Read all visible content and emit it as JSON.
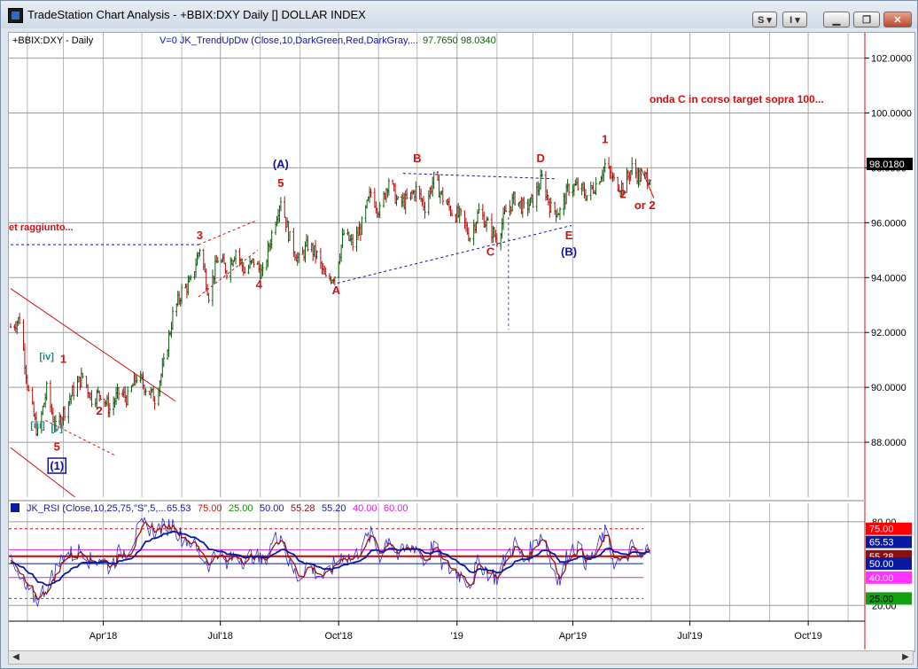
{
  "window": {
    "title": "TradeStation Chart Analysis - +BBIX:DXY Daily [] DOLLAR INDEX",
    "buttons": {
      "s_label": "S ▾",
      "i_label": "I ▾"
    }
  },
  "price_panel": {
    "symbol_label": "+BBIX:DXY - Daily",
    "indicator_label": "V=0  JK_TrendUpDw  (Close,10,DarkGreen,Red,DarkGray,...",
    "indicator_val1": "97.7650",
    "indicator_val2": "98.0340",
    "last_price": "98.0180",
    "note_right": "onda C in corso  target sopra 100...",
    "note_left": "et raggiunto..."
  },
  "rsi_panel": {
    "label": "JK_RSI (Close,10,25,75,\"S\",5,...",
    "values": [
      "65.53",
      "75.00",
      "25.00",
      "50.00",
      "55.28",
      "55.20",
      "40.00",
      "60.00"
    ],
    "value_colors": [
      "#1a1a9a",
      "#d01010",
      "#128a12",
      "#1a1a9a",
      "#8b1010",
      "#1a1a9a",
      "#e020e0",
      "#e020e0"
    ],
    "axis_badges": [
      {
        "text": "75.00",
        "bg": "#ff0000",
        "fg": "#ffffff",
        "v": 75
      },
      {
        "text": "65.53",
        "bg": "#0a1aa0",
        "fg": "#ffffff",
        "v": 65.53
      },
      {
        "text": "55.28",
        "bg": "#8b1010",
        "fg": "#ffffff",
        "v": 55.28
      },
      {
        "text": "50.00",
        "bg": "#0a1aa0",
        "fg": "#ffffff",
        "v": 50
      },
      {
        "text": "40.00",
        "bg": "#ff33ff",
        "fg": "#ffffff",
        "v": 40
      },
      {
        "text": "25.00",
        "bg": "#10a010",
        "fg": "#000000",
        "v": 25
      }
    ]
  },
  "colors": {
    "up": "#0e5a0e",
    "down": "#b40f0f",
    "grid": "#9a9a9a",
    "annot_red": "#d01010",
    "annot_blue": "#1010a0",
    "annot_teal": "#1a8a8a"
  },
  "chart_data": {
    "type": "ohlc",
    "price_axis": {
      "ticks": [
        88,
        90,
        92,
        94,
        96,
        98,
        100,
        102
      ],
      "tick_labels": [
        "88.0000",
        "90.0000",
        "92.0000",
        "94.0000",
        "96.0000",
        "98.0000",
        "100.0000",
        "102.0000"
      ],
      "ylim": [
        86,
        102.6
      ]
    },
    "time_axis": {
      "xlim": [
        "2018-01-19",
        "2019-11-14"
      ],
      "tick_dates": [
        "2018-04-01",
        "2018-07-01",
        "2018-10-01",
        "2019-01-01",
        "2019-04-01",
        "2019-07-01",
        "2019-10-01"
      ],
      "tick_labels": [
        "Apr'18",
        "Jul'18",
        "Oct'18",
        "'19",
        "Apr'19",
        "Jul'19",
        "Oct'19"
      ]
    },
    "rsi_axis": {
      "ticks": [
        20,
        80
      ],
      "tick_labels": [
        "20.00",
        "80.00"
      ],
      "ylim": [
        17,
        85
      ]
    },
    "price_path": [
      [
        "2018-01-19",
        92.2
      ],
      [
        "2018-01-26",
        92.5
      ],
      [
        "2018-02-02",
        89.8
      ],
      [
        "2018-02-09",
        88.3
      ],
      [
        "2018-02-16",
        89.9
      ],
      [
        "2018-02-23",
        88.5
      ],
      [
        "2018-03-02",
        89.2
      ],
      [
        "2018-03-09",
        89.9
      ],
      [
        "2018-03-16",
        90.4
      ],
      [
        "2018-03-23",
        89.6
      ],
      [
        "2018-03-30",
        89.8
      ],
      [
        "2018-04-06",
        89.2
      ],
      [
        "2018-04-13",
        89.8
      ],
      [
        "2018-04-20",
        89.6
      ],
      [
        "2018-04-27",
        90.4
      ],
      [
        "2018-05-04",
        90.0
      ],
      [
        "2018-05-11",
        89.6
      ],
      [
        "2018-05-18",
        90.8
      ],
      [
        "2018-05-25",
        92.6
      ],
      [
        "2018-06-01",
        93.5
      ],
      [
        "2018-06-08",
        93.8
      ],
      [
        "2018-06-15",
        95.1
      ],
      [
        "2018-06-22",
        93.4
      ],
      [
        "2018-06-29",
        94.7
      ],
      [
        "2018-07-06",
        94.3
      ],
      [
        "2018-07-13",
        95.0
      ],
      [
        "2018-07-20",
        94.2
      ],
      [
        "2018-07-27",
        94.6
      ],
      [
        "2018-08-03",
        94.1
      ],
      [
        "2018-08-10",
        95.6
      ],
      [
        "2018-08-17",
        96.9
      ],
      [
        "2018-08-24",
        95.4
      ],
      [
        "2018-08-31",
        94.6
      ],
      [
        "2018-09-07",
        95.2
      ],
      [
        "2018-09-14",
        94.8
      ],
      [
        "2018-09-21",
        93.9
      ],
      [
        "2018-09-28",
        94.1
      ],
      [
        "2018-10-05",
        95.6
      ],
      [
        "2018-10-12",
        95.2
      ],
      [
        "2018-10-19",
        95.9
      ],
      [
        "2018-10-26",
        97.1
      ],
      [
        "2018-11-02",
        96.4
      ],
      [
        "2018-11-09",
        97.6
      ],
      [
        "2018-11-16",
        96.7
      ],
      [
        "2018-11-23",
        96.8
      ],
      [
        "2018-11-30",
        97.2
      ],
      [
        "2018-12-07",
        96.6
      ],
      [
        "2018-12-14",
        97.6
      ],
      [
        "2018-12-21",
        96.9
      ],
      [
        "2018-12-28",
        96.4
      ],
      [
        "2019-01-04",
        96.2
      ],
      [
        "2019-01-11",
        95.5
      ],
      [
        "2019-01-18",
        96.4
      ],
      [
        "2019-01-25",
        95.9
      ],
      [
        "2019-02-01",
        95.4
      ],
      [
        "2019-02-08",
        96.4
      ],
      [
        "2019-02-15",
        96.9
      ],
      [
        "2019-02-22",
        96.5
      ],
      [
        "2019-03-01",
        96.8
      ],
      [
        "2019-03-08",
        97.6
      ],
      [
        "2019-03-15",
        96.5
      ],
      [
        "2019-03-22",
        96.4
      ],
      [
        "2019-03-29",
        97.3
      ],
      [
        "2019-04-05",
        97.3
      ],
      [
        "2019-04-12",
        97.0
      ],
      [
        "2019-04-19",
        97.4
      ],
      [
        "2019-04-26",
        98.1
      ],
      [
        "2019-05-03",
        97.5
      ],
      [
        "2019-05-10",
        97.3
      ],
      [
        "2019-05-17",
        98.0
      ],
      [
        "2019-05-24",
        97.6
      ],
      [
        "2019-05-31",
        97.7
      ]
    ],
    "rsi_path": [
      [
        "2018-01-19",
        50
      ],
      [
        "2018-01-26",
        38
      ],
      [
        "2018-02-02",
        28
      ],
      [
        "2018-02-09",
        25
      ],
      [
        "2018-02-16",
        34
      ],
      [
        "2018-02-23",
        45
      ],
      [
        "2018-03-02",
        58
      ],
      [
        "2018-03-09",
        56
      ],
      [
        "2018-03-16",
        61
      ],
      [
        "2018-03-23",
        50
      ],
      [
        "2018-03-30",
        55
      ],
      [
        "2018-04-06",
        47
      ],
      [
        "2018-04-13",
        57
      ],
      [
        "2018-04-20",
        60
      ],
      [
        "2018-04-27",
        72
      ],
      [
        "2018-05-04",
        78
      ],
      [
        "2018-05-11",
        74
      ],
      [
        "2018-05-18",
        76
      ],
      [
        "2018-05-25",
        78
      ],
      [
        "2018-06-01",
        69
      ],
      [
        "2018-06-08",
        66
      ],
      [
        "2018-06-15",
        57
      ],
      [
        "2018-06-22",
        50
      ],
      [
        "2018-06-29",
        60
      ],
      [
        "2018-07-06",
        48
      ],
      [
        "2018-07-13",
        58
      ],
      [
        "2018-07-20",
        52
      ],
      [
        "2018-07-27",
        57
      ],
      [
        "2018-08-03",
        50
      ],
      [
        "2018-08-10",
        64
      ],
      [
        "2018-08-17",
        72
      ],
      [
        "2018-08-24",
        48
      ],
      [
        "2018-08-31",
        40
      ],
      [
        "2018-09-07",
        50
      ],
      [
        "2018-09-14",
        43
      ],
      [
        "2018-09-21",
        40
      ],
      [
        "2018-09-28",
        50
      ],
      [
        "2018-10-05",
        58
      ],
      [
        "2018-10-12",
        52
      ],
      [
        "2018-10-19",
        63
      ],
      [
        "2018-10-26",
        70
      ],
      [
        "2018-11-02",
        56
      ],
      [
        "2018-11-09",
        70
      ],
      [
        "2018-11-16",
        55
      ],
      [
        "2018-11-23",
        60
      ],
      [
        "2018-11-30",
        63
      ],
      [
        "2018-12-07",
        50
      ],
      [
        "2018-12-14",
        65
      ],
      [
        "2018-12-21",
        48
      ],
      [
        "2018-12-28",
        45
      ],
      [
        "2019-01-04",
        42
      ],
      [
        "2019-01-11",
        36
      ],
      [
        "2019-01-18",
        52
      ],
      [
        "2019-01-25",
        44
      ],
      [
        "2019-02-01",
        40
      ],
      [
        "2019-02-08",
        55
      ],
      [
        "2019-02-15",
        64
      ],
      [
        "2019-02-22",
        52
      ],
      [
        "2019-03-01",
        62
      ],
      [
        "2019-03-08",
        73
      ],
      [
        "2019-03-15",
        50
      ],
      [
        "2019-03-22",
        38
      ],
      [
        "2019-03-29",
        60
      ],
      [
        "2019-04-05",
        62
      ],
      [
        "2019-04-12",
        50
      ],
      [
        "2019-04-19",
        58
      ],
      [
        "2019-04-26",
        72
      ],
      [
        "2019-05-03",
        52
      ],
      [
        "2019-05-10",
        50
      ],
      [
        "2019-05-17",
        62
      ],
      [
        "2019-05-24",
        52
      ],
      [
        "2019-05-31",
        64
      ]
    ],
    "rsi_levels": [
      {
        "v": 75,
        "color": "#b01010",
        "dash": "3,3"
      },
      {
        "v": 60,
        "color": "#e020e0",
        "dash": ""
      },
      {
        "v": 55.28,
        "color": "#cc0000",
        "dash": ""
      },
      {
        "v": 50,
        "color": "#0a1aa0",
        "dash": ""
      },
      {
        "v": 40,
        "color": "#e020e0",
        "dash": ""
      },
      {
        "v": 25,
        "color": "#108a10",
        "dash": "3,3"
      }
    ],
    "annotations": [
      {
        "text": "(A)",
        "date": "2018-08-17",
        "price": 98.0,
        "color": "#1010a0"
      },
      {
        "text": "5",
        "date": "2018-08-17",
        "price": 97.3,
        "color": "#d01010"
      },
      {
        "text": "3",
        "date": "2018-06-15",
        "price": 95.4,
        "color": "#d01010"
      },
      {
        "text": "4",
        "date": "2018-07-31",
        "price": 93.6,
        "color": "#d01010"
      },
      {
        "text": "A",
        "date": "2018-09-29",
        "price": 93.4,
        "color": "#d01010"
      },
      {
        "text": "B",
        "date": "2018-12-01",
        "price": 98.2,
        "color": "#d01010"
      },
      {
        "text": "C",
        "date": "2019-01-27",
        "price": 94.8,
        "color": "#d01010"
      },
      {
        "text": "D",
        "date": "2019-03-07",
        "price": 98.2,
        "color": "#d01010"
      },
      {
        "text": "E",
        "date": "2019-03-29",
        "price": 95.4,
        "color": "#d01010"
      },
      {
        "text": "(B)",
        "date": "2019-03-29",
        "price": 94.8,
        "color": "#1010a0"
      },
      {
        "text": "1",
        "date": "2019-04-26",
        "price": 98.9,
        "color": "#d01010"
      },
      {
        "text": "2",
        "date": "2019-05-10",
        "price": 96.9,
        "color": "#d01010"
      },
      {
        "text": "or 2",
        "date": "2019-05-27",
        "price": 96.5,
        "color": "#d01010"
      },
      {
        "text": "[iv]",
        "date": "2018-02-16",
        "price": 91.0,
        "color": "#1a8a8a"
      },
      {
        "text": "1",
        "date": "2018-03-01",
        "price": 90.9,
        "color": "#d01010"
      },
      {
        "text": "[iii]",
        "date": "2018-02-09",
        "price": 88.5,
        "color": "#1a8a8a"
      },
      {
        "text": "[v]",
        "date": "2018-02-24",
        "price": 88.4,
        "color": "#1a8a8a"
      },
      {
        "text": "5",
        "date": "2018-02-24",
        "price": 87.7,
        "color": "#d01010"
      },
      {
        "text": "(1)",
        "date": "2018-02-24",
        "price": 87.0,
        "color": "#1010a0",
        "boxed": true
      },
      {
        "text": "2",
        "date": "2018-03-29",
        "price": 89.0,
        "color": "#d01010"
      }
    ],
    "trendlines": [
      {
        "from": [
          "2018-01-19",
          95.2
        ],
        "to": [
          "2018-06-16",
          95.2
        ],
        "color": "#1010a0",
        "dash": "3,3"
      },
      {
        "from": [
          "2018-09-30",
          93.8
        ],
        "to": [
          "2019-03-31",
          95.9
        ],
        "color": "#1010a0",
        "dash": "3,3"
      },
      {
        "from": [
          "2018-11-20",
          97.8
        ],
        "to": [
          "2019-03-19",
          97.6
        ],
        "color": "#1010a0",
        "dash": "3,3"
      },
      {
        "from": [
          "2018-06-14",
          93.3
        ],
        "to": [
          "2018-07-30",
          95.0
        ],
        "color": "#d01010",
        "dash": "3,3"
      },
      {
        "from": [
          "2018-06-14",
          95.2
        ],
        "to": [
          "2018-07-30",
          96.1
        ],
        "color": "#d01010",
        "dash": "3,3"
      },
      {
        "from": [
          "2018-01-19",
          93.6
        ],
        "to": [
          "2018-05-27",
          89.5
        ],
        "color": "#d01010",
        "dash": ""
      },
      {
        "from": [
          "2018-01-19",
          87.8
        ],
        "to": [
          "2018-03-10",
          86.0
        ],
        "color": "#d01010",
        "dash": ""
      },
      {
        "from": [
          "2018-02-15",
          88.8
        ],
        "to": [
          "2018-04-11",
          87.5
        ],
        "color": "#d01010",
        "dash": "3,3"
      },
      {
        "from": [
          "2019-05-24",
          98.0
        ],
        "to": [
          "2019-06-03",
          96.9
        ],
        "color": "#d01010",
        "dash": ""
      },
      {
        "from": [
          "2019-02-10",
          96.2
        ],
        "to": [
          "2019-02-10",
          92.1
        ],
        "color": "#7a2a9a",
        "dash": "3,3"
      }
    ]
  }
}
